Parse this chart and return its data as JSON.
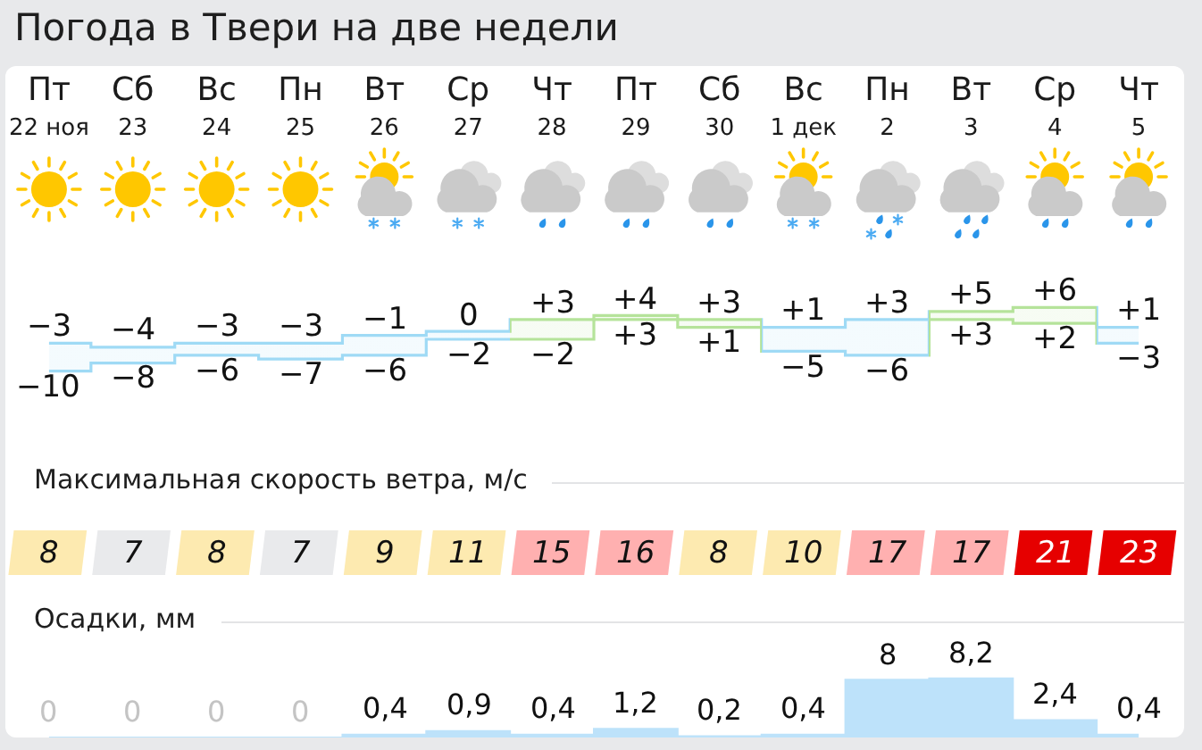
{
  "chart_data": [
    {
      "type": "step",
      "title": "Погода в Твери на две недели",
      "categories": [
        "Пт\n22 ноя",
        "Сб\n23",
        "Вс\n24",
        "Пн\n25",
        "Вт\n26",
        "Ср\n27",
        "Чт\n28",
        "Пт\n29",
        "Сб\n30",
        "Вс\n1 дек",
        "Пн\n2",
        "Вт\n3",
        "Ср\n4",
        "Чт\n5"
      ],
      "tick_labels": "x",
      "series": [
        {
          "values": [
            -3,
            -4,
            -3,
            -3,
            -1,
            0,
            3,
            4,
            3,
            1,
            3,
            5,
            6,
            1
          ],
          "value_labels": [
            "−3",
            "−4",
            "−3",
            "−3",
            "−1",
            "0",
            "+3",
            "+4",
            "+3",
            "+1",
            "+3",
            "+5",
            "+6",
            "+1"
          ],
          "colors": [
            "#9fdaf5",
            "#9fdaf5",
            "#9fdaf5",
            "#9fdaf5",
            "#9fdaf5",
            "#9fdaf5",
            "#b5e39a",
            "#b5e39a",
            "#b5e39a",
            "#9fdaf5",
            "#9fdaf5",
            "#b5e39a",
            "#b5e39a",
            "#9fdaf5"
          ]
        },
        {
          "values": [
            -10,
            -8,
            -6,
            -7,
            -6,
            -2,
            -2,
            3,
            1,
            -5,
            -6,
            3,
            2,
            -3
          ],
          "value_labels": [
            "−10",
            "−8",
            "−6",
            "−7",
            "−6",
            "−2",
            "−2",
            "+3",
            "+1",
            "−5",
            "−6",
            "+3",
            "+2",
            "−3"
          ],
          "colors": [
            "#9fdaf5",
            "#9fdaf5",
            "#9fdaf5",
            "#9fdaf5",
            "#9fdaf5",
            "#9fdaf5",
            "#b5e39a",
            "#b5e39a",
            "#b5e39a",
            "#9fdaf5",
            "#9fdaf5",
            "#b5e39a",
            "#b5e39a",
            "#9fdaf5"
          ]
        }
      ]
    },
    {
      "type": "heatmap",
      "title": "Максимальная скорость ветра, м/с",
      "categories": [
        null,
        null,
        null,
        null,
        null,
        null,
        null,
        null,
        null,
        null,
        null,
        null,
        null,
        null
      ],
      "y_categories": [
        null
      ],
      "cells": [
        [
          8,
          7,
          8,
          7,
          9,
          11,
          15,
          16,
          8,
          10,
          17,
          17,
          21,
          23
        ]
      ],
      "colors": [
        "#fdeab0",
        "#e9eaec",
        "#fdeab0",
        "#e9eaec",
        "#fdeab0",
        "#fdeab0",
        "#ffb0b0",
        "#ffb0b0",
        "#fdeab0",
        "#fdeab0",
        "#ffb0b0",
        "#ffb0b0",
        "#e60000",
        "#e60000"
      ],
      "data_labels": true
    },
    {
      "type": "area",
      "title": "Осадки, мм",
      "categories": [
        null,
        null,
        null,
        null,
        null,
        null,
        null,
        null,
        null,
        null,
        null,
        null,
        null,
        null
      ],
      "values": [
        0,
        0,
        0,
        0,
        0.4,
        0.9,
        0.4,
        1.2,
        0.2,
        0.4,
        8,
        8.2,
        2.4,
        0.4
      ],
      "value_labels": [
        "0",
        "0",
        "0",
        "0",
        "0,4",
        "0,9",
        "0,4",
        "1,2",
        "0,2",
        "0,4",
        "8",
        "8,2",
        "2,4",
        "0,4"
      ],
      "color": "#bde2fa",
      "tick_labels": false
    }
  ]
}
